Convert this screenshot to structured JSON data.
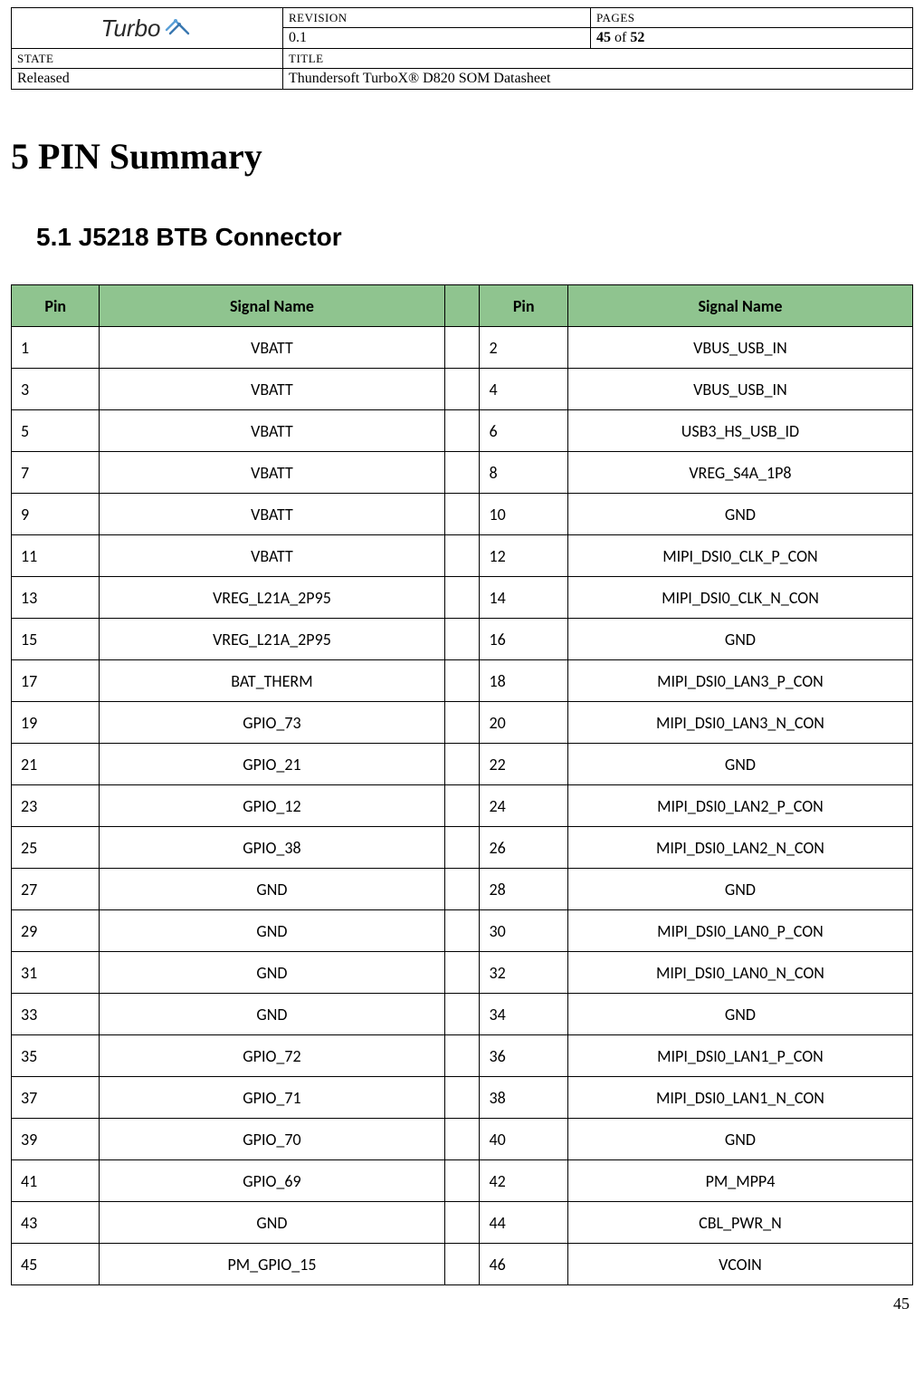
{
  "meta": {
    "labels": {
      "revision": "REVISION",
      "pages": "PAGES",
      "state": "STATE",
      "title": "TITLE"
    },
    "revision": "0.1",
    "pages_current": "45",
    "pages_of": " of ",
    "pages_total": "52",
    "state": "Released",
    "title": "Thundersoft TurboX® D820 SOM Datasheet",
    "logo_text": "Turbo"
  },
  "headings": {
    "h1": "5  PIN Summary",
    "h2": "5.1    J5218 BTB Connector"
  },
  "pin_table": {
    "headers": {
      "pin": "Pin",
      "signal": "Signal Name"
    },
    "header_bg": "#8fc48f",
    "rows": [
      {
        "p1": "1",
        "s1": "VBATT",
        "p2": "2",
        "s2": "VBUS_USB_IN"
      },
      {
        "p1": "3",
        "s1": "VBATT",
        "p2": "4",
        "s2": "VBUS_USB_IN"
      },
      {
        "p1": "5",
        "s1": "VBATT",
        "p2": "6",
        "s2": "USB3_HS_USB_ID"
      },
      {
        "p1": "7",
        "s1": "VBATT",
        "p2": "8",
        "s2": "VREG_S4A_1P8"
      },
      {
        "p1": "9",
        "s1": "VBATT",
        "p2": "10",
        "s2": "GND"
      },
      {
        "p1": "11",
        "s1": "VBATT",
        "p2": "12",
        "s2": "MIPI_DSI0_CLK_P_CON"
      },
      {
        "p1": "13",
        "s1": "VREG_L21A_2P95",
        "p2": "14",
        "s2": "MIPI_DSI0_CLK_N_CON"
      },
      {
        "p1": "15",
        "s1": "VREG_L21A_2P95",
        "p2": "16",
        "s2": "GND"
      },
      {
        "p1": "17",
        "s1": "BAT_THERM",
        "p2": "18",
        "s2": "MIPI_DSI0_LAN3_P_CON"
      },
      {
        "p1": "19",
        "s1": "GPIO_73",
        "p2": "20",
        "s2": "MIPI_DSI0_LAN3_N_CON"
      },
      {
        "p1": "21",
        "s1": "GPIO_21",
        "p2": "22",
        "s2": "GND"
      },
      {
        "p1": "23",
        "s1": "GPIO_12",
        "p2": "24",
        "s2": "MIPI_DSI0_LAN2_P_CON"
      },
      {
        "p1": "25",
        "s1": "GPIO_38",
        "p2": "26",
        "s2": "MIPI_DSI0_LAN2_N_CON"
      },
      {
        "p1": "27",
        "s1": "GND",
        "p2": "28",
        "s2": "GND"
      },
      {
        "p1": "29",
        "s1": "GND",
        "p2": "30",
        "s2": "MIPI_DSI0_LAN0_P_CON"
      },
      {
        "p1": "31",
        "s1": "GND",
        "p2": "32",
        "s2": "MIPI_DSI0_LAN0_N_CON"
      },
      {
        "p1": "33",
        "s1": "GND",
        "p2": "34",
        "s2": "GND"
      },
      {
        "p1": "35",
        "s1": "GPIO_72",
        "p2": "36",
        "s2": "MIPI_DSI0_LAN1_P_CON"
      },
      {
        "p1": "37",
        "s1": "GPIO_71",
        "p2": "38",
        "s2": "MIPI_DSI0_LAN1_N_CON"
      },
      {
        "p1": "39",
        "s1": "GPIO_70",
        "p2": "40",
        "s2": "GND"
      },
      {
        "p1": "41",
        "s1": "GPIO_69",
        "p2": "42",
        "s2": "PM_MPP4"
      },
      {
        "p1": "43",
        "s1": "GND",
        "p2": "44",
        "s2": "CBL_PWR_N"
      },
      {
        "p1": "45",
        "s1": "PM_GPIO_15",
        "p2": "46",
        "s2": "VCOIN"
      }
    ]
  },
  "page_number": "45"
}
